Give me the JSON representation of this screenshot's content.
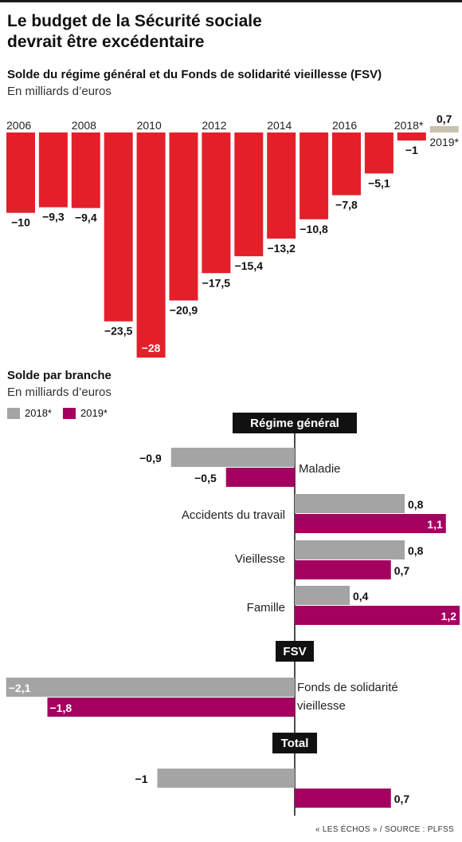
{
  "title_line1": "Le budget de la Sécurité sociale",
  "title_line2": "devrait être excédentaire",
  "source": "« LES ÉCHOS » / SOURCE : PLFSS",
  "colors": {
    "deficit": "#e3202a",
    "surplus_2019": "#c8c1ad",
    "series_2018": "#a4a4a4",
    "series_2019": "#a3005f",
    "black": "#111111"
  },
  "chart_data": [
    {
      "type": "bar",
      "title": "Solde du régime général et du Fonds de solidarité vieillesse (FSV)",
      "subtitle": "En milliards d’euros",
      "categories": [
        "2006",
        "2007",
        "2008",
        "2009",
        "2010",
        "2011",
        "2012",
        "2013",
        "2014",
        "2015",
        "2016",
        "2017",
        "2018*",
        "2019*"
      ],
      "tick_labels": [
        "2006",
        "2008",
        "2010",
        "2012",
        "2014",
        "2016",
        "2018*",
        "2019*"
      ],
      "values": [
        -10,
        -9.3,
        -9.4,
        -23.5,
        -28,
        -20.9,
        -17.5,
        -15.4,
        -13.2,
        -10.8,
        -7.8,
        -5.1,
        -1,
        0.7
      ],
      "value_labels": [
        "−10",
        "−9,3",
        "−9,4",
        "−23,5",
        "−28",
        "−20,9",
        "−17,5",
        "−15,4",
        "−13,2",
        "−10,8",
        "−7,8",
        "−5,1",
        "−1",
        "0,7"
      ],
      "ylim": [
        -28,
        0.7
      ]
    },
    {
      "type": "bar",
      "orientation": "horizontal",
      "title": "Solde par branche",
      "subtitle": "En milliards d’euros",
      "series": [
        {
          "name": "2018*",
          "values": [
            -0.9,
            0.8,
            0.8,
            0.4,
            -2.1,
            -1
          ]
        },
        {
          "name": "2019*",
          "values": [
            -0.5,
            1.1,
            0.7,
            1.2,
            -1.8,
            0.7
          ]
        }
      ],
      "series_labels": [
        [
          "−0,9",
          "0,8",
          "0,8",
          "0,4",
          "−2,1",
          "−1"
        ],
        [
          "−0,5",
          "1,1",
          "0,7",
          "1,2",
          "−1,8",
          "0,7"
        ]
      ],
      "groups": [
        {
          "heading": "Régime général",
          "rows": [
            {
              "label": "Maladie",
              "i": 0
            },
            {
              "label": "Accidents du travail",
              "i": 1
            },
            {
              "label": "Vieillesse",
              "i": 2
            },
            {
              "label": "Famille",
              "i": 3
            }
          ]
        },
        {
          "heading": "FSV",
          "rows": [
            {
              "label": "Fonds de solidarité vieillesse",
              "i": 4
            }
          ]
        },
        {
          "heading": "Total",
          "rows": [
            {
              "label": "",
              "i": 5
            }
          ]
        }
      ]
    }
  ]
}
